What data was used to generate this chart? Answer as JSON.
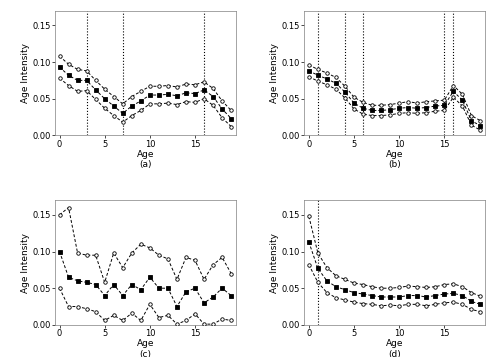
{
  "ages": [
    0,
    1,
    2,
    3,
    4,
    5,
    6,
    7,
    8,
    9,
    10,
    11,
    12,
    13,
    14,
    15,
    16,
    17,
    18,
    19
  ],
  "panel_a": {
    "label": "(a)",
    "xlabel": "Age",
    "ylabel": "Age Intensity",
    "ylim": [
      0.0,
      0.17
    ],
    "yticks": [
      0.0,
      0.05,
      0.1,
      0.15
    ],
    "vlines": [
      3,
      7,
      16
    ],
    "median": [
      0.093,
      0.082,
      0.075,
      0.075,
      0.062,
      0.05,
      0.04,
      0.03,
      0.04,
      0.047,
      0.055,
      0.055,
      0.056,
      0.054,
      0.058,
      0.057,
      0.062,
      0.053,
      0.036,
      0.023
    ],
    "upper": [
      0.108,
      0.097,
      0.09,
      0.088,
      0.075,
      0.063,
      0.053,
      0.043,
      0.053,
      0.06,
      0.067,
      0.067,
      0.068,
      0.066,
      0.07,
      0.069,
      0.073,
      0.064,
      0.047,
      0.034
    ],
    "lower": [
      0.078,
      0.068,
      0.06,
      0.061,
      0.049,
      0.037,
      0.027,
      0.018,
      0.027,
      0.034,
      0.043,
      0.043,
      0.044,
      0.042,
      0.046,
      0.045,
      0.05,
      0.041,
      0.024,
      0.012
    ]
  },
  "panel_b": {
    "label": "(b)",
    "xlabel": "Age",
    "ylabel": "Age Intensity",
    "ylim": [
      0.0,
      0.17
    ],
    "yticks": [
      0.0,
      0.05,
      0.1,
      0.15
    ],
    "vlines": [
      1,
      4,
      6,
      15,
      16
    ],
    "median": [
      0.088,
      0.082,
      0.077,
      0.071,
      0.059,
      0.044,
      0.037,
      0.034,
      0.034,
      0.035,
      0.037,
      0.038,
      0.037,
      0.038,
      0.04,
      0.041,
      0.06,
      0.048,
      0.02,
      0.013
    ],
    "upper": [
      0.096,
      0.09,
      0.085,
      0.079,
      0.067,
      0.052,
      0.045,
      0.041,
      0.041,
      0.042,
      0.044,
      0.046,
      0.044,
      0.046,
      0.047,
      0.048,
      0.068,
      0.056,
      0.027,
      0.02
    ],
    "lower": [
      0.08,
      0.074,
      0.069,
      0.063,
      0.051,
      0.036,
      0.029,
      0.027,
      0.027,
      0.028,
      0.03,
      0.031,
      0.03,
      0.031,
      0.033,
      0.034,
      0.052,
      0.04,
      0.014,
      0.007
    ]
  },
  "panel_c": {
    "label": "(c)",
    "xlabel": "Age",
    "ylabel": "Age Intensity",
    "ylim": [
      0.0,
      0.17
    ],
    "yticks": [
      0.0,
      0.05,
      0.1,
      0.15
    ],
    "vlines": [],
    "median": [
      0.1,
      0.065,
      0.06,
      0.058,
      0.055,
      0.04,
      0.055,
      0.04,
      0.055,
      0.048,
      0.065,
      0.05,
      0.05,
      0.025,
      0.045,
      0.05,
      0.03,
      0.038,
      0.05,
      0.04
    ],
    "upper": [
      0.15,
      0.16,
      0.098,
      0.095,
      0.095,
      0.058,
      0.098,
      0.078,
      0.098,
      0.11,
      0.105,
      0.095,
      0.09,
      0.062,
      0.092,
      0.088,
      0.062,
      0.082,
      0.092,
      0.07
    ],
    "lower": [
      0.05,
      0.025,
      0.025,
      0.022,
      0.018,
      0.006,
      0.013,
      0.006,
      0.016,
      0.006,
      0.028,
      0.01,
      0.013,
      0.001,
      0.006,
      0.015,
      0.001,
      0.001,
      0.008,
      0.006
    ]
  },
  "panel_d": {
    "label": "(d)",
    "xlabel": "Age",
    "ylabel": "Age Intensity",
    "ylim": [
      0.0,
      0.17
    ],
    "yticks": [
      0.0,
      0.05,
      0.1,
      0.15
    ],
    "vlines": [
      1
    ],
    "median": [
      0.113,
      0.077,
      0.06,
      0.052,
      0.048,
      0.044,
      0.042,
      0.04,
      0.038,
      0.038,
      0.038,
      0.04,
      0.04,
      0.038,
      0.04,
      0.042,
      0.043,
      0.04,
      0.032,
      0.028
    ],
    "upper": [
      0.148,
      0.098,
      0.078,
      0.067,
      0.062,
      0.057,
      0.055,
      0.052,
      0.05,
      0.05,
      0.051,
      0.053,
      0.052,
      0.051,
      0.052,
      0.055,
      0.056,
      0.052,
      0.044,
      0.039
    ],
    "lower": [
      0.082,
      0.058,
      0.044,
      0.037,
      0.034,
      0.031,
      0.029,
      0.028,
      0.026,
      0.027,
      0.026,
      0.028,
      0.028,
      0.026,
      0.028,
      0.03,
      0.031,
      0.028,
      0.021,
      0.018
    ]
  }
}
